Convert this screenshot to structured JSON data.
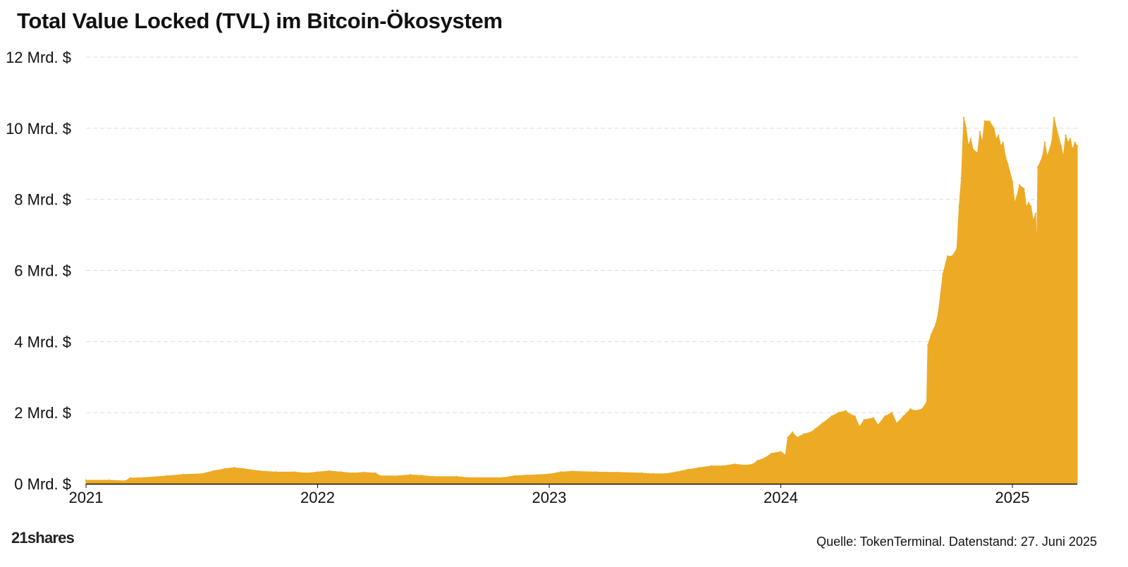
{
  "title": "Total Value Locked (TVL) im Bitcoin-Ökosystem",
  "logo": "21shares",
  "source": "Quelle: TokenTerminal. Datenstand: 27. Juni 2025",
  "colors": {
    "fill": "#EDAA24",
    "grid": "#dddddd",
    "axis": "#111111"
  },
  "chart_data": {
    "type": "area",
    "title": "Total Value Locked (TVL) im Bitcoin-Ökosystem",
    "xlabel": "",
    "ylabel": "",
    "unit": "Mrd. $",
    "xlim": [
      2021.0,
      2025.28
    ],
    "ylim": [
      0,
      12
    ],
    "grid": true,
    "legend": "none",
    "yticks": [
      {
        "value": 12,
        "label": "12 Mrd. $"
      },
      {
        "value": 10,
        "label": "10 Mrd. $"
      },
      {
        "value": 8,
        "label": "8 Mrd. $"
      },
      {
        "value": 6,
        "label": "6 Mrd. $"
      },
      {
        "value": 4,
        "label": "4 Mrd. $"
      },
      {
        "value": 2,
        "label": "2 Mrd. $"
      },
      {
        "value": 0,
        "label": "0 Mrd. $"
      }
    ],
    "xticks": [
      {
        "value": 2021,
        "label": "2021"
      },
      {
        "value": 2022,
        "label": "2022"
      },
      {
        "value": 2023,
        "label": "2023"
      },
      {
        "value": 2024,
        "label": "2024"
      },
      {
        "value": 2025,
        "label": "2025"
      }
    ],
    "series": [
      {
        "name": "TVL",
        "points": [
          [
            2021.0,
            0.1
          ],
          [
            2021.1,
            0.1
          ],
          [
            2021.17,
            0.08
          ],
          [
            2021.19,
            0.16
          ],
          [
            2021.25,
            0.17
          ],
          [
            2021.35,
            0.22
          ],
          [
            2021.42,
            0.26
          ],
          [
            2021.5,
            0.28
          ],
          [
            2021.55,
            0.36
          ],
          [
            2021.6,
            0.42
          ],
          [
            2021.64,
            0.45
          ],
          [
            2021.68,
            0.42
          ],
          [
            2021.75,
            0.36
          ],
          [
            2021.82,
            0.33
          ],
          [
            2021.9,
            0.33
          ],
          [
            2021.95,
            0.3
          ],
          [
            2022.0,
            0.33
          ],
          [
            2022.05,
            0.36
          ],
          [
            2022.1,
            0.33
          ],
          [
            2022.15,
            0.3
          ],
          [
            2022.2,
            0.32
          ],
          [
            2022.25,
            0.3
          ],
          [
            2022.27,
            0.22
          ],
          [
            2022.35,
            0.22
          ],
          [
            2022.4,
            0.25
          ],
          [
            2022.45,
            0.23
          ],
          [
            2022.5,
            0.2
          ],
          [
            2022.6,
            0.2
          ],
          [
            2022.65,
            0.17
          ],
          [
            2022.8,
            0.17
          ],
          [
            2022.85,
            0.22
          ],
          [
            2022.9,
            0.24
          ],
          [
            2022.95,
            0.25
          ],
          [
            2023.0,
            0.27
          ],
          [
            2023.05,
            0.33
          ],
          [
            2023.1,
            0.35
          ],
          [
            2023.2,
            0.33
          ],
          [
            2023.3,
            0.32
          ],
          [
            2023.4,
            0.3
          ],
          [
            2023.45,
            0.28
          ],
          [
            2023.5,
            0.28
          ],
          [
            2023.55,
            0.33
          ],
          [
            2023.6,
            0.4
          ],
          [
            2023.65,
            0.45
          ],
          [
            2023.7,
            0.5
          ],
          [
            2023.75,
            0.5
          ],
          [
            2023.8,
            0.55
          ],
          [
            2023.85,
            0.52
          ],
          [
            2023.88,
            0.55
          ],
          [
            2023.9,
            0.65
          ],
          [
            2023.93,
            0.72
          ],
          [
            2023.96,
            0.85
          ],
          [
            2024.0,
            0.9
          ],
          [
            2024.02,
            0.8
          ],
          [
            2024.03,
            1.3
          ],
          [
            2024.05,
            1.45
          ],
          [
            2024.07,
            1.3
          ],
          [
            2024.1,
            1.4
          ],
          [
            2024.13,
            1.45
          ],
          [
            2024.15,
            1.55
          ],
          [
            2024.18,
            1.7
          ],
          [
            2024.22,
            1.9
          ],
          [
            2024.25,
            2.0
          ],
          [
            2024.28,
            2.05
          ],
          [
            2024.3,
            1.95
          ],
          [
            2024.32,
            1.9
          ],
          [
            2024.34,
            1.6
          ],
          [
            2024.36,
            1.8
          ],
          [
            2024.4,
            1.85
          ],
          [
            2024.42,
            1.65
          ],
          [
            2024.45,
            1.9
          ],
          [
            2024.48,
            2.0
          ],
          [
            2024.5,
            1.7
          ],
          [
            2024.53,
            1.9
          ],
          [
            2024.56,
            2.1
          ],
          [
            2024.58,
            2.05
          ],
          [
            2024.61,
            2.1
          ],
          [
            2024.63,
            2.3
          ],
          [
            2024.635,
            3.9
          ],
          [
            2024.65,
            4.2
          ],
          [
            2024.67,
            4.5
          ],
          [
            2024.68,
            4.8
          ],
          [
            2024.7,
            5.9
          ],
          [
            2024.72,
            6.4
          ],
          [
            2024.74,
            6.4
          ],
          [
            2024.76,
            6.6
          ],
          [
            2024.77,
            7.8
          ],
          [
            2024.78,
            8.6
          ],
          [
            2024.79,
            10.3
          ],
          [
            2024.8,
            10.0
          ],
          [
            2024.81,
            9.5
          ],
          [
            2024.82,
            9.7
          ],
          [
            2024.83,
            9.4
          ],
          [
            2024.85,
            9.3
          ],
          [
            2024.86,
            9.9
          ],
          [
            2024.87,
            9.6
          ],
          [
            2024.88,
            10.2
          ],
          [
            2024.9,
            10.2
          ],
          [
            2024.92,
            10.0
          ],
          [
            2024.93,
            9.7
          ],
          [
            2024.94,
            9.8
          ],
          [
            2024.95,
            9.5
          ],
          [
            2024.96,
            9.6
          ],
          [
            2024.97,
            9.2
          ],
          [
            2024.98,
            9.0
          ],
          [
            2025.0,
            8.5
          ],
          [
            2025.01,
            7.9
          ],
          [
            2025.02,
            8.1
          ],
          [
            2025.03,
            8.4
          ],
          [
            2025.05,
            8.3
          ],
          [
            2025.06,
            7.8
          ],
          [
            2025.07,
            7.9
          ],
          [
            2025.08,
            7.8
          ],
          [
            2025.09,
            7.4
          ],
          [
            2025.1,
            7.6
          ],
          [
            2025.105,
            6.6
          ],
          [
            2025.11,
            8.9
          ],
          [
            2025.13,
            9.2
          ],
          [
            2025.14,
            9.6
          ],
          [
            2025.15,
            9.2
          ],
          [
            2025.17,
            9.6
          ],
          [
            2025.18,
            10.3
          ],
          [
            2025.19,
            10.0
          ],
          [
            2025.21,
            9.5
          ],
          [
            2025.22,
            9.2
          ],
          [
            2025.23,
            9.8
          ],
          [
            2025.24,
            9.6
          ],
          [
            2025.25,
            9.7
          ],
          [
            2025.26,
            9.4
          ],
          [
            2025.27,
            9.6
          ],
          [
            2025.28,
            9.5
          ]
        ]
      }
    ]
  }
}
